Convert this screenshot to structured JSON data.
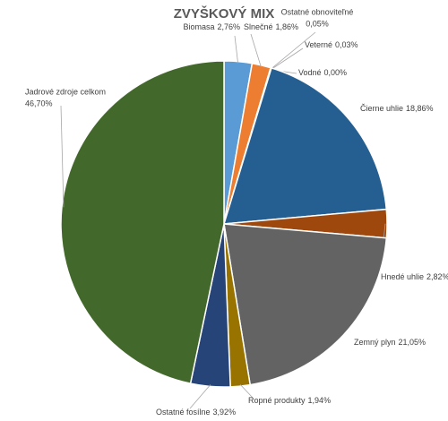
{
  "chart_data": {
    "type": "pie",
    "title": "ZVYŠKOVÝ MIX",
    "categories": [
      "Biomasa",
      "Slnečné",
      "Ostatné obnoviteľné",
      "Veterné",
      "Vodné",
      "Čierne uhlie",
      "Hnedé uhlie",
      "Zemný plyn",
      "Ropné produkty",
      "Ostatné fosílne",
      "Jadrové zdroje celkom"
    ],
    "values": [
      2.76,
      1.86,
      0.05,
      0.03,
      0.0,
      18.86,
      2.82,
      21.05,
      1.94,
      3.92,
      46.7
    ],
    "value_labels": [
      "2,76%",
      "1,86%",
      "0,05%",
      "0,03%",
      "0,00%",
      "18,86%",
      "2,82%",
      "21,05%",
      "1,94%",
      "3,92%",
      "46,70%"
    ],
    "colors": [
      "#5b9bd5",
      "#ed7d31",
      "#a5a5a5",
      "#ffc000",
      "#4472c4",
      "#255e91",
      "#9e480e",
      "#636363",
      "#997300",
      "#264478",
      "#43682b"
    ]
  }
}
